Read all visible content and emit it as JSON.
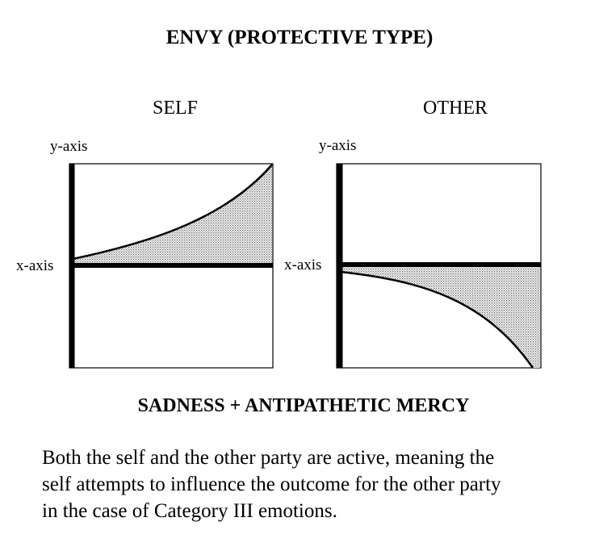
{
  "title": "ENVY (PROTECTIVE TYPE)",
  "panels": [
    {
      "label": "SELF",
      "y_axis_label": "y-axis",
      "x_axis_label": "x-axis",
      "curve": "rising-above-x-axis"
    },
    {
      "label": "OTHER",
      "y_axis_label": "y-axis",
      "x_axis_label": "x-axis",
      "curve": "falling-below-x-axis"
    }
  ],
  "subtitle": "SADNESS + ANTIPATHETIC MERCY",
  "description_lines": [
    "Both the self and the other party are active, meaning the",
    "self attempts to influence the outcome for the other party",
    "in the case of Category III emotions."
  ],
  "colors": {
    "ink": "#000000",
    "shade": "#d8d8d8",
    "background": "#ffffff"
  }
}
